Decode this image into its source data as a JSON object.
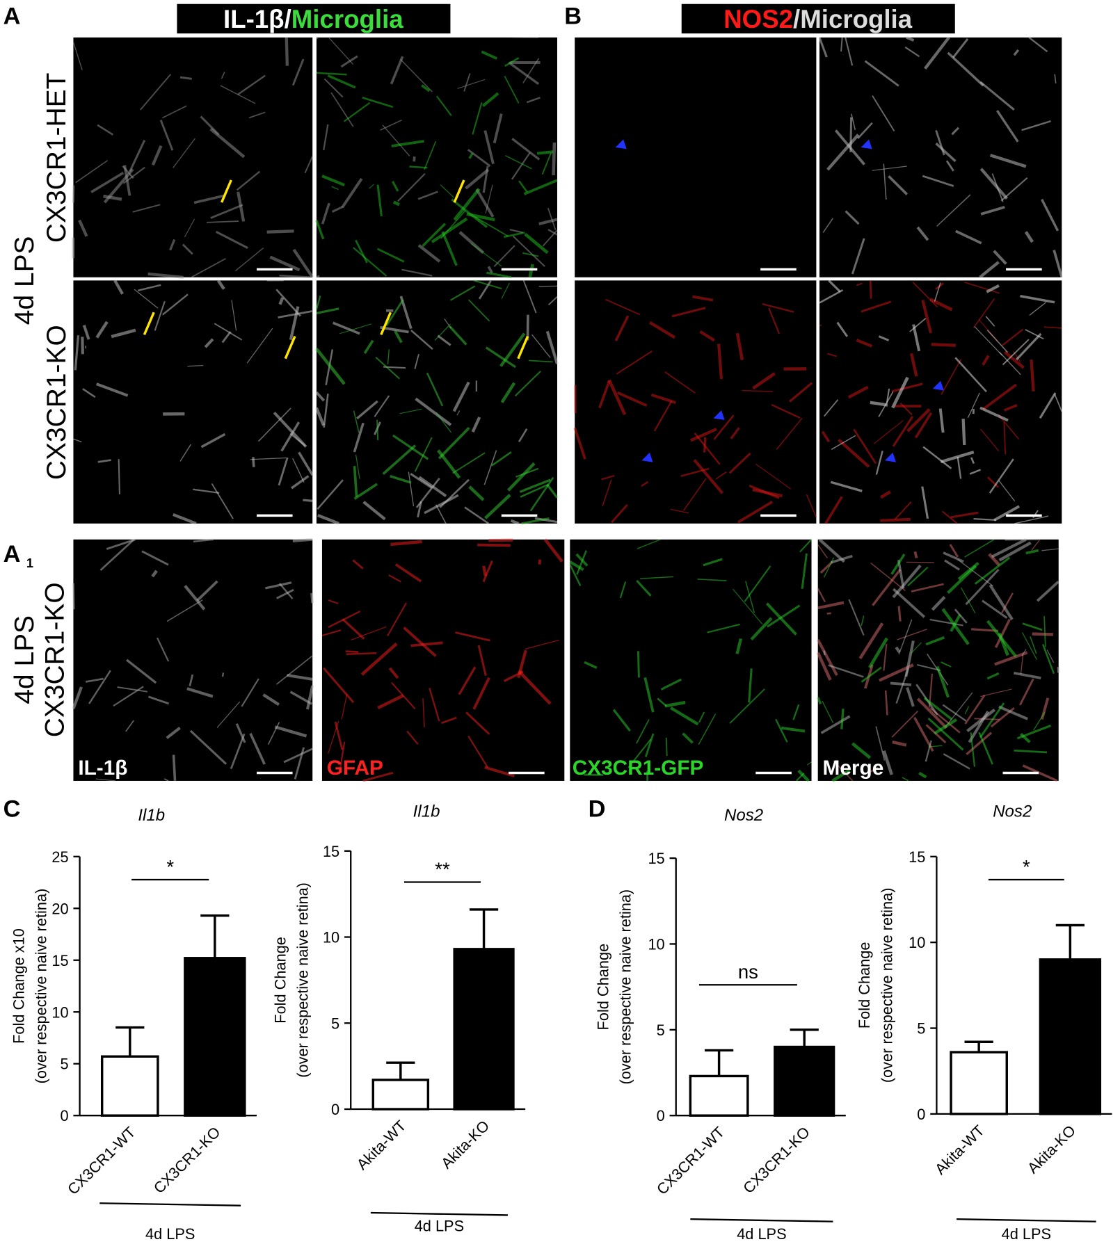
{
  "panel_labels": [
    "A",
    "B",
    "A",
    "1",
    "C",
    "D"
  ],
  "headers": {
    "a": [
      "IL-1β",
      "/",
      "Microglia"
    ],
    "b": [
      "NOS2",
      "/",
      "Microglia"
    ]
  },
  "row_labels": {
    "top_group": "4d LPS",
    "het": "CX3CR1-HET",
    "ko": "CX3CR1-KO",
    "a1_group": "4d LPS",
    "a1_ko": "CX3CR1-KO"
  },
  "image_labels": [
    "IL-1β",
    "GFAP",
    "CX3CR1-GFP",
    "Merge"
  ],
  "chart_data": [
    {
      "type": "bar",
      "title": "Il1b",
      "ylabel": [
        "Fold Change x10",
        "(over respective naive retina)"
      ],
      "categories": [
        "CX3CR1-WT",
        "CX3CR1-KO"
      ],
      "values": [
        5.7,
        15.2
      ],
      "errors": [
        2.8,
        4.1
      ],
      "colors": [
        "#ffffff",
        "#000000"
      ],
      "ylim": [
        0,
        25
      ],
      "yticks": [
        0,
        5,
        10,
        15,
        20,
        25
      ],
      "significance": "*",
      "xlabel": "4d LPS"
    },
    {
      "type": "bar",
      "title": "Il1b",
      "ylabel": [
        "Fold Change",
        "(over respective naive retina)"
      ],
      "categories": [
        "Akita-WT",
        "Akita-KO"
      ],
      "values": [
        1.7,
        9.3
      ],
      "errors": [
        1.0,
        2.3
      ],
      "colors": [
        "#ffffff",
        "#000000"
      ],
      "ylim": [
        0,
        15
      ],
      "yticks": [
        0,
        5,
        10,
        15
      ],
      "significance": "**",
      "xlabel": "4d LPS"
    },
    {
      "type": "bar",
      "title": "Nos2",
      "ylabel": [
        "Fold Change",
        "(over respective naive retina)"
      ],
      "categories": [
        "CX3CR1-WT",
        "CX3CR1-KO"
      ],
      "values": [
        2.3,
        4.0
      ],
      "errors": [
        1.5,
        1.0
      ],
      "colors": [
        "#ffffff",
        "#000000"
      ],
      "ylim": [
        0,
        15
      ],
      "yticks": [
        0,
        5,
        10,
        15
      ],
      "significance": "ns",
      "xlabel": "4d LPS"
    },
    {
      "type": "bar",
      "title": "Nos2",
      "ylabel": [
        "Fold Change",
        "(over respective naive retina)"
      ],
      "categories": [
        "Akita-WT",
        "Akita-KO"
      ],
      "values": [
        3.6,
        9.0
      ],
      "errors": [
        0.6,
        2.0
      ],
      "colors": [
        "#ffffff",
        "#000000"
      ],
      "ylim": [
        0,
        15
      ],
      "yticks": [
        0,
        5,
        10,
        15
      ],
      "significance": "*",
      "xlabel": "4d LPS"
    }
  ]
}
